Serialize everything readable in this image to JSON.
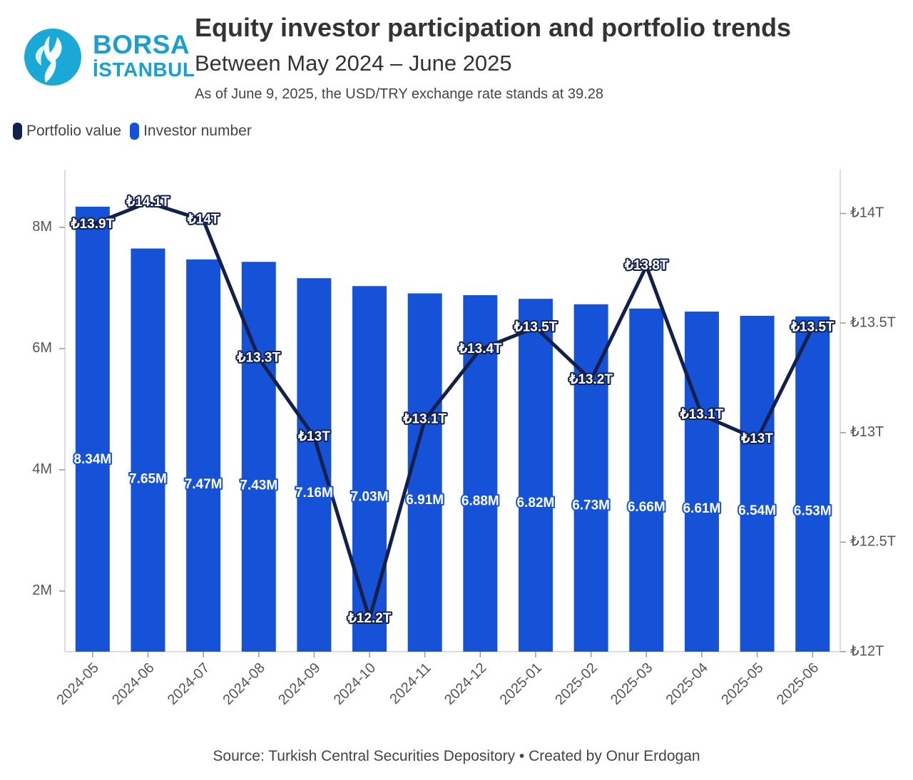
{
  "header": {
    "title": "Equity investor participation and portfolio trends",
    "subtitle": "Between May 2024 – June 2025",
    "note": "As of June 9, 2025, the USD/TRY exchange rate stands at 39.28"
  },
  "logo": {
    "line1": "BORSA",
    "line2": "İSTANBUL",
    "icon": "borsa-istanbul-tulip-logo"
  },
  "legend": [
    {
      "label": "Portfolio value",
      "color": "#13204a"
    },
    {
      "label": "Investor number",
      "color": "#1652d8"
    }
  ],
  "footer": {
    "source": "Source: Turkish Central Securities Depository • Created by Onur Erdogan"
  },
  "colors": {
    "bar": "#1652d8",
    "line": "#13204a",
    "axis": "#dddddd",
    "label_text": "#ffffff"
  },
  "chart_data": {
    "type": "bar",
    "categories": [
      "2024-05",
      "2024-06",
      "2024-07",
      "2024-08",
      "2024-09",
      "2024-10",
      "2024-11",
      "2024-12",
      "2025-01",
      "2025-02",
      "2025-03",
      "2025-04",
      "2025-05",
      "2025-06"
    ],
    "series": [
      {
        "name": "Investor number",
        "type": "bar",
        "axis": "left",
        "values": [
          8.34,
          7.65,
          7.47,
          7.43,
          7.16,
          7.03,
          6.91,
          6.88,
          6.82,
          6.73,
          6.66,
          6.61,
          6.54,
          6.53
        ],
        "labels": [
          "8.34M",
          "7.65M",
          "7.47M",
          "7.43M",
          "7.16M",
          "7.03M",
          "6.91M",
          "6.88M",
          "6.82M",
          "6.73M",
          "6.66M",
          "6.61M",
          "6.54M",
          "6.53M"
        ]
      },
      {
        "name": "Portfolio value",
        "type": "line",
        "axis": "right",
        "values": [
          13.95,
          14.05,
          13.97,
          13.34,
          12.98,
          12.15,
          13.06,
          13.38,
          13.48,
          13.24,
          13.76,
          13.08,
          12.97,
          13.48
        ],
        "labels": [
          "₺13.9T",
          "₺14.1T",
          "₺14T",
          "₺13.3T",
          "₺13T",
          "₺12.2T",
          "₺13.1T",
          "₺13.4T",
          "₺13.5T",
          "₺13.2T",
          "₺13.8T",
          "₺13.1T",
          "₺13T",
          "₺13.5T"
        ]
      }
    ],
    "left_axis": {
      "ticks": [
        2,
        4,
        6,
        8
      ],
      "tick_labels": [
        "2M",
        "4M",
        "6M",
        "8M"
      ],
      "ylim": [
        1,
        8.95
      ]
    },
    "right_axis": {
      "ticks": [
        12,
        12.5,
        13,
        13.5,
        14
      ],
      "tick_labels": [
        "₺12T",
        "₺12.5T",
        "₺13T",
        "₺13.5T",
        "₺14T"
      ],
      "ylim": [
        12,
        14.2
      ]
    },
    "grid": false,
    "legend_position": "top-left"
  }
}
